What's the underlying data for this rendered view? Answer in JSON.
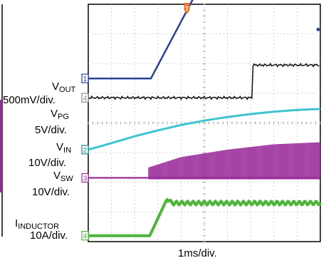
{
  "chart_data": {
    "type": "line",
    "title": "",
    "xlabel": "1ms/div.",
    "x_divisions": 10,
    "y_divisions": 8,
    "grid": true,
    "channels": [
      {
        "id": "1",
        "name": "VOUT",
        "name_main": "V",
        "name_sub": "OUT",
        "scale": "500mV/div.",
        "color": "#2a3f9a",
        "marker_color": "#2a3f9a",
        "points": [
          [
            0,
            5.5
          ],
          [
            2.7,
            5.5
          ],
          [
            4.7,
            8.45
          ],
          [
            10,
            8.45
          ]
        ]
      },
      {
        "id": "2",
        "name": "VIN",
        "name_main": "V",
        "name_sub": "IN",
        "scale": "10V/div.",
        "color": "#3cc4cf",
        "marker_color": "#1a8a8a",
        "points": [
          [
            0,
            3.1
          ],
          [
            1,
            3.32
          ],
          [
            2,
            3.55
          ],
          [
            3,
            3.75
          ],
          [
            4,
            3.93
          ],
          [
            5,
            4.08
          ],
          [
            6,
            4.2
          ],
          [
            7,
            4.3
          ],
          [
            8,
            4.38
          ],
          [
            9,
            4.44
          ],
          [
            10,
            4.47
          ]
        ]
      },
      {
        "id": "3",
        "name": "VSW",
        "name_main": "V",
        "name_sub": "SW",
        "scale": "10V/div.",
        "color": "#9a2a9a",
        "marker_color": "#9a2a9a",
        "points": [
          [
            0,
            2.15
          ],
          [
            2.6,
            2.15
          ],
          [
            10,
            2.15
          ]
        ],
        "switching_start": 2.6,
        "envelope_top": [
          [
            2.6,
            2.5
          ],
          [
            4,
            2.85
          ],
          [
            6,
            3.1
          ],
          [
            8,
            3.28
          ],
          [
            10,
            3.35
          ]
        ]
      },
      {
        "id": "4",
        "name": "VPG",
        "name_main": "V",
        "name_sub": "PG",
        "scale": "5V/div.",
        "color": "#111111",
        "marker_color": "#888888",
        "points": [
          [
            0,
            4.85
          ],
          [
            7.05,
            4.85
          ],
          [
            7.05,
            5.95
          ],
          [
            10,
            5.95
          ]
        ]
      },
      {
        "id": "4",
        "name": "INDUCTOR",
        "name_main": "I",
        "name_sub": "INDUCTOR",
        "scale": "10A/div.",
        "color": "#4db53a",
        "marker_color": "#4db53a",
        "points": [
          [
            0,
            0.2
          ],
          [
            2.65,
            0.2
          ],
          [
            3.4,
            1.45
          ],
          [
            3.6,
            1.3
          ],
          [
            10,
            1.3
          ]
        ]
      }
    ],
    "trigger_marker": {
      "label": "T",
      "x": 4.25,
      "color": "#e8762a"
    }
  }
}
